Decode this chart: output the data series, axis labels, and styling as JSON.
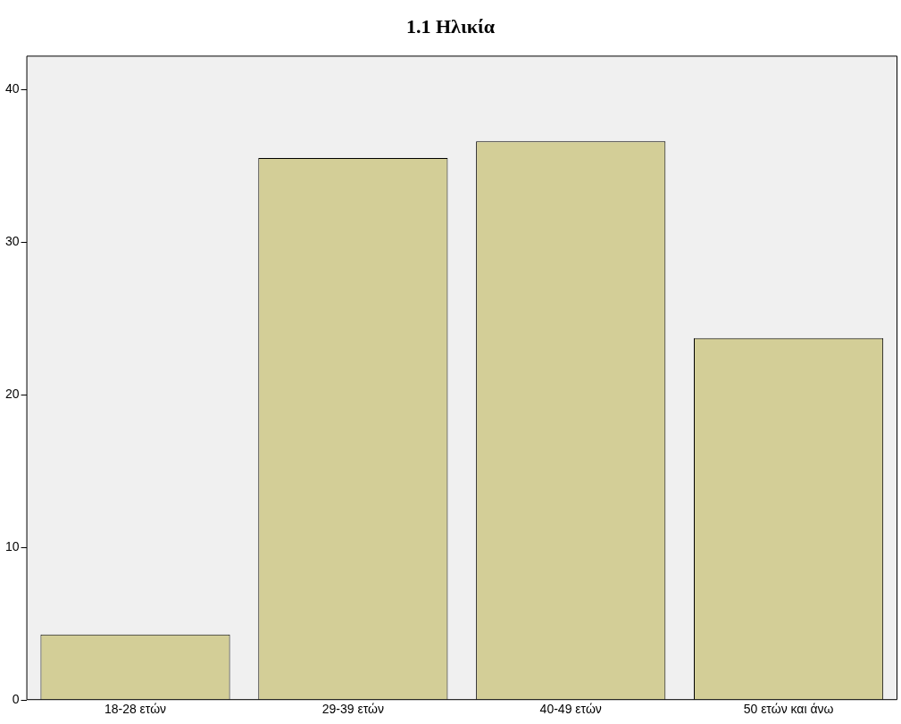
{
  "chart_data": {
    "type": "bar",
    "title": "1.1 Ηλικία",
    "categories": [
      "18-28 ετών",
      "29-39 ετών",
      "40-49 ετών",
      "50 ετών και άνω"
    ],
    "values": [
      4.3,
      35.5,
      36.6,
      23.7
    ],
    "color": "#d3ce97",
    "ylim": [
      0,
      42.2
    ],
    "yticks": [
      0,
      10,
      20,
      30,
      40
    ],
    "grid": false,
    "legend": false
  }
}
